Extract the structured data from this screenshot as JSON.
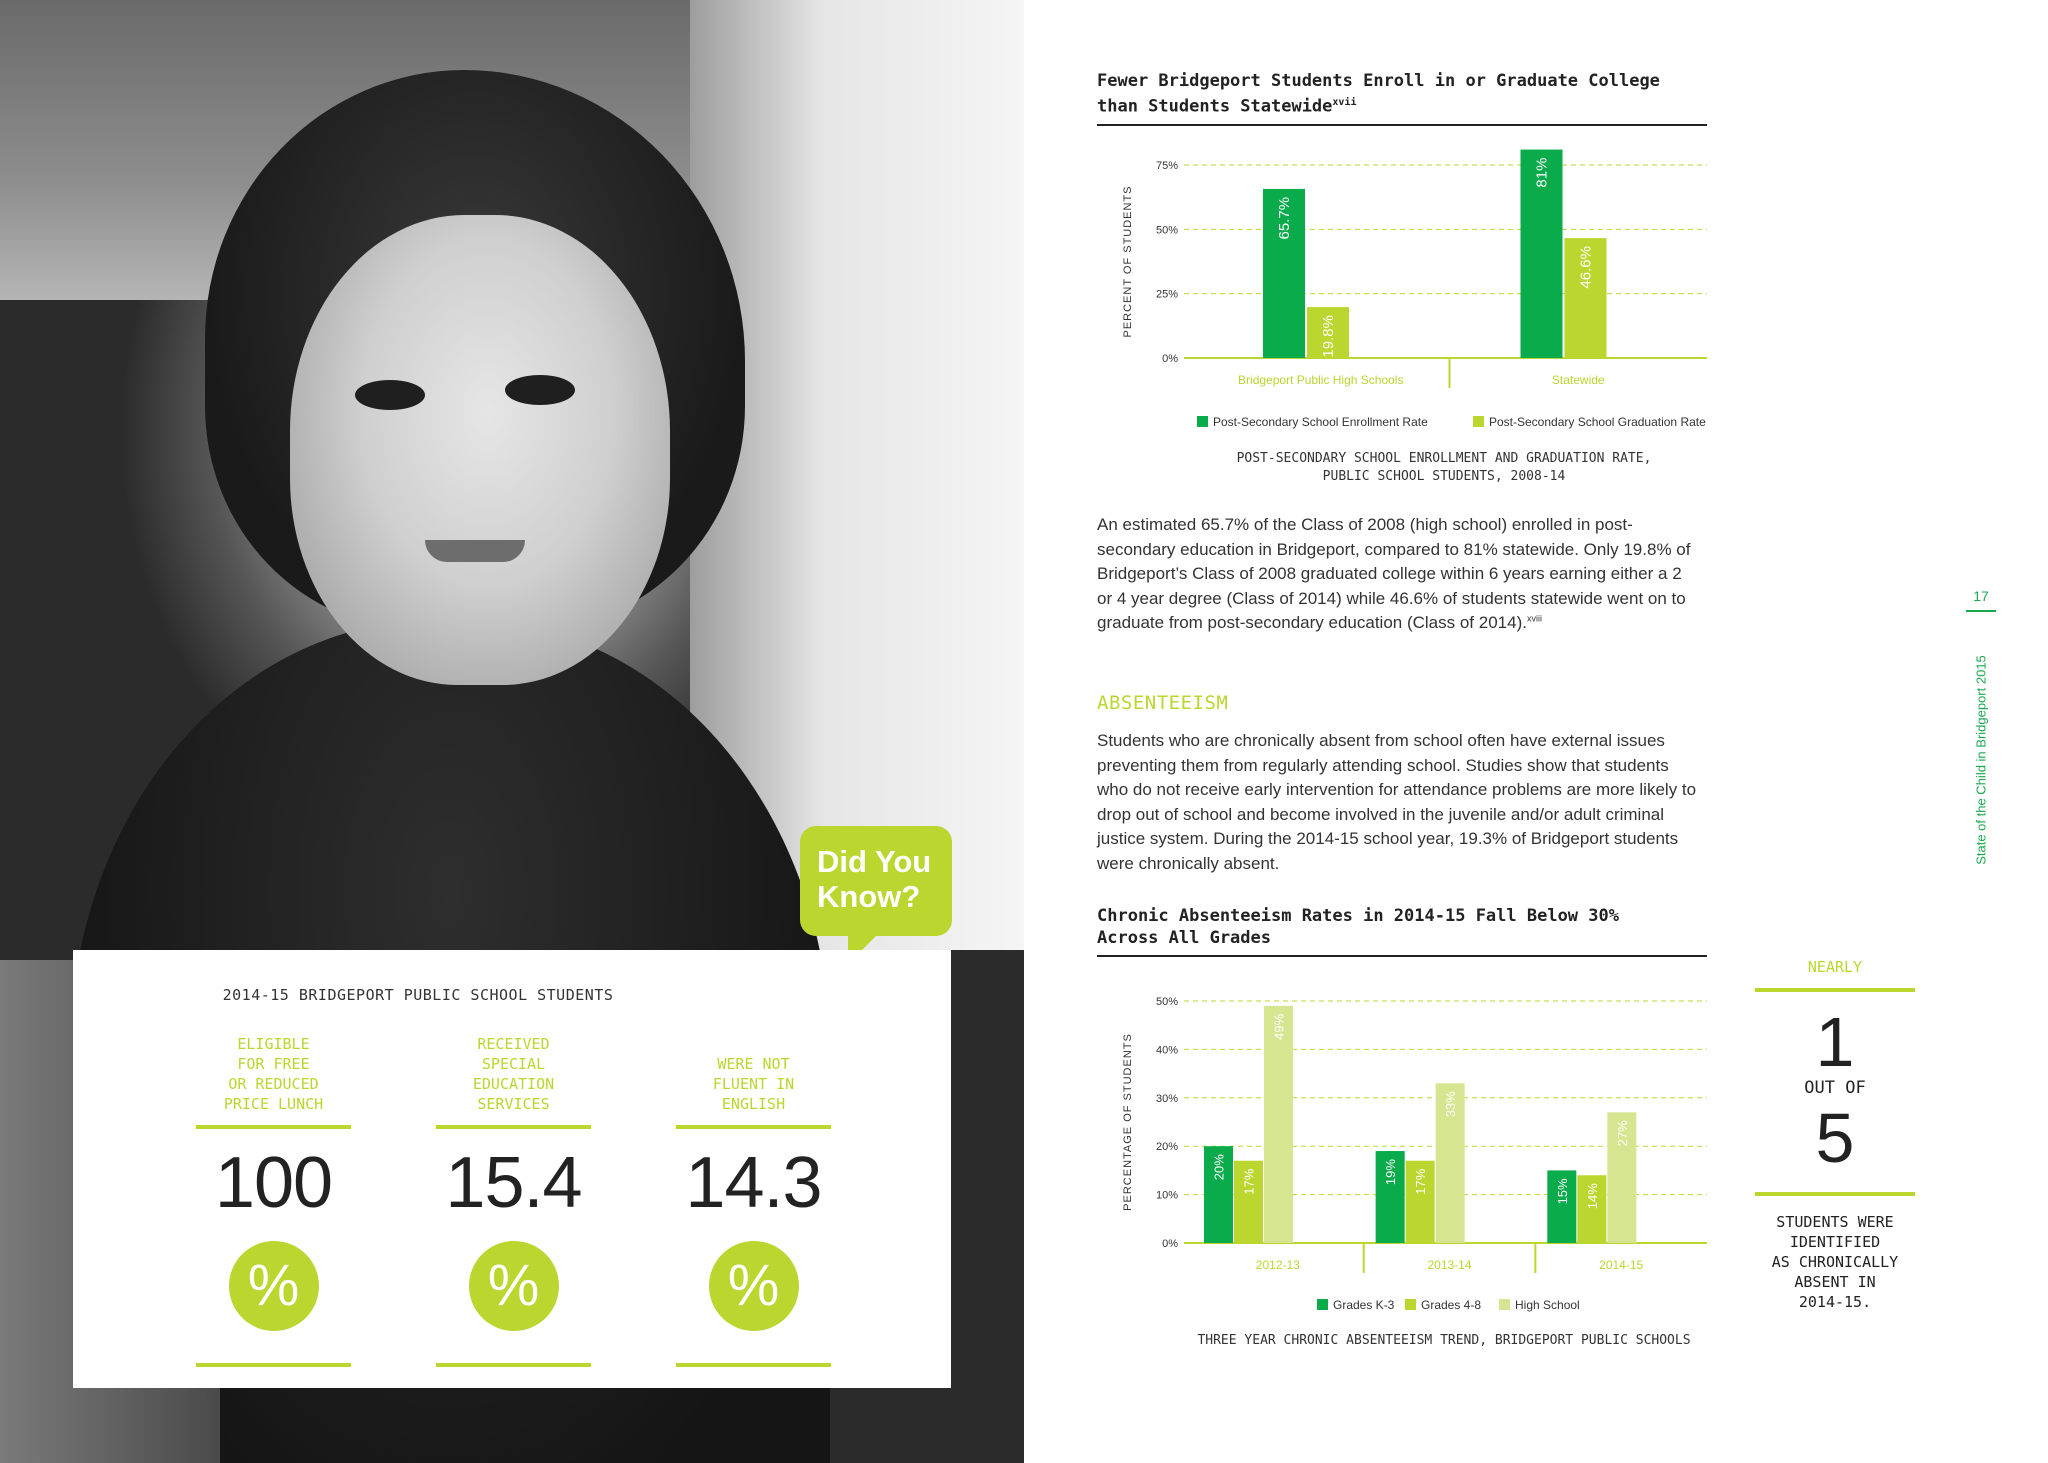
{
  "photo": {
    "alt_icon": "child-photo"
  },
  "did_you_know": {
    "text": "Did You\nKnow?"
  },
  "stats_card": {
    "title": "2014-15 BRIDGEPORT PUBLIC SCHOOL STUDENTS",
    "items": [
      {
        "label": "ELIGIBLE\nFOR FREE\nOR REDUCED\nPRICE LUNCH",
        "value": "100",
        "unit": "%"
      },
      {
        "label": "RECEIVED\nSPECIAL\nEDUCATION\nSERVICES",
        "value": "15.4",
        "unit": "%"
      },
      {
        "label": "WERE NOT\nFLUENT IN\nENGLISH",
        "value": "14.3",
        "unit": "%"
      }
    ]
  },
  "colors": {
    "dark_green": "#0aab4b",
    "lime": "#bcd630",
    "pale_lime": "#d6e690",
    "axis": "#bcd630"
  },
  "chart1": {
    "title": "Fewer Bridgeport Students Enroll in or Graduate College than Students Statewide",
    "title_sup": "xvii",
    "caption": "POST-SECONDARY SCHOOL ENROLLMENT AND GRADUATION RATE,\nPUBLIC SCHOOL STUDENTS, 2008-14"
  },
  "chart2": {
    "title": "Chronic Absenteeism Rates in 2014-15 Fall Below 30%\nAcross All Grades",
    "caption": "THREE YEAR CHRONIC ABSENTEEISM TREND, BRIDGEPORT PUBLIC SCHOOLS"
  },
  "chart_data": [
    {
      "type": "bar",
      "title": "Fewer Bridgeport Students Enroll in or Graduate College than Students Statewide",
      "categories": [
        "Bridgeport Public High Schools",
        "Statewide"
      ],
      "series": [
        {
          "name": "Post-Secondary School Enrollment Rate",
          "values": [
            65.7,
            81
          ],
          "labels": [
            "65.7%",
            "81%"
          ]
        },
        {
          "name": "Post-Secondary School Graduation Rate",
          "values": [
            19.8,
            46.6
          ],
          "labels": [
            "19.8%",
            "46.6%"
          ]
        }
      ],
      "ylabel": "PERCENT OF STUDENTS",
      "yticks": [
        "0%",
        "25%",
        "50%",
        "75%"
      ],
      "ylim": [
        0,
        75
      ],
      "grid": true,
      "legend": "bottom"
    },
    {
      "type": "bar",
      "title": "Chronic Absenteeism Rates in 2014-15 Fall Below 30% Across All Grades",
      "categories": [
        "2012-13",
        "2013-14",
        "2014-15"
      ],
      "series": [
        {
          "name": "Grades K-3",
          "values": [
            20,
            19,
            15
          ],
          "labels": [
            "20%",
            "19%",
            "15%"
          ]
        },
        {
          "name": "Grades 4-8",
          "values": [
            17,
            17,
            14
          ],
          "labels": [
            "17%",
            "17%",
            "14%"
          ]
        },
        {
          "name": "High School",
          "values": [
            49,
            33,
            27
          ],
          "labels": [
            "49%",
            "33%",
            "27%"
          ]
        }
      ],
      "ylabel": "PERCENTAGE OF STUDENTS",
      "yticks": [
        "0%",
        "10%",
        "20%",
        "30%",
        "40%",
        "50%"
      ],
      "ylim": [
        0,
        50
      ],
      "grid": true,
      "legend": "bottom"
    }
  ],
  "paragraph1": {
    "text": "An estimated 65.7% of the Class of 2008 (high school) enrolled in post-secondary education in Bridgeport, compared to 81% statewide. Only 19.8% of Bridgeport’s Class of 2008 graduated college within 6 years earning either a 2 or 4 year degree (Class of 2014) while 46.6% of students statewide went on to graduate from post-secondary education (Class of 2014).",
    "sup": "xviii"
  },
  "absenteeism": {
    "heading": "ABSENTEEISM",
    "text": "Students who are chronically absent from school often have external issues preventing them from regularly attending school. Studies show that students who do not receive early intervention for attendance problems are more likely to drop out of school and become involved in the juvenile and/or adult criminal justice system. During the 2014-15 school year, 19.3% of Bridgeport students were chronically absent."
  },
  "callout": {
    "nearly": "NEARLY",
    "one": "1",
    "out_of": "OUT OF",
    "five": "5",
    "text": "STUDENTS WERE\nIDENTIFIED\nAS CHRONICALLY\nABSENT IN\n2014-15."
  },
  "page": {
    "number": "17",
    "running_title": "State of the Child in Bridgeport 2015"
  }
}
